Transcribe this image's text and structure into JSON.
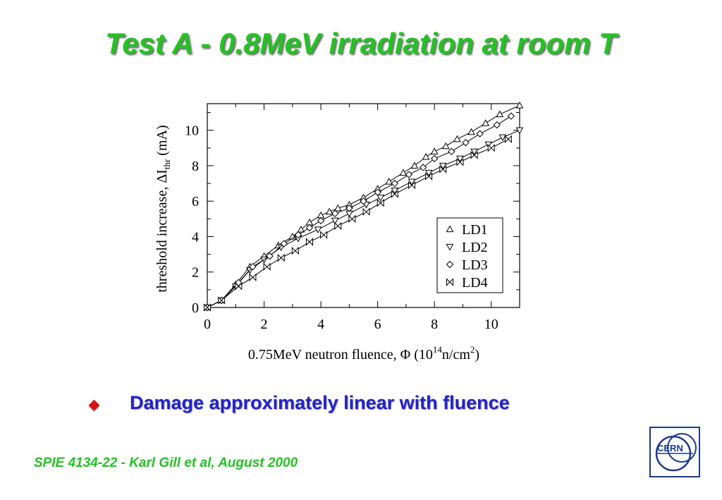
{
  "slide": {
    "title": "Test A - 0.8MeV irradiation at room T",
    "bullet": "Damage approximately linear with fluence",
    "footer": "SPIE 4134-22 - Karl Gill et al, August 2000",
    "logo_text": "CERN"
  },
  "colors": {
    "title": "#22c322",
    "bullet_text": "#2222cc",
    "bullet_icon": "#dd1111",
    "logo": "#1b3a8a"
  },
  "chart_data": {
    "type": "line",
    "xlabel": {
      "main": "0.75MeV neutron fluence, Φ (10",
      "sup1": "14",
      "mid": "n/cm",
      "sup2": "2",
      "end": ")"
    },
    "ylabel": {
      "main": "threshold increase, ΔI",
      "sub": "thr",
      "end": " (mA)"
    },
    "xlim": [
      0,
      11
    ],
    "ylim": [
      0,
      11.5
    ],
    "xticks": [
      0,
      2,
      4,
      6,
      8,
      10
    ],
    "yticks": [
      0,
      2,
      4,
      6,
      8,
      10
    ],
    "grid": false,
    "legend_position": "lower-right",
    "series": [
      {
        "name": "LD1",
        "marker": "triangle-up",
        "x": [
          0,
          0.5,
          1.0,
          1.5,
          2.0,
          2.5,
          3.0,
          3.3,
          3.6,
          4.0,
          4.3,
          4.6,
          5.0,
          5.5,
          6.0,
          6.4,
          6.9,
          7.3,
          7.7,
          8.0,
          8.4,
          8.8,
          9.3,
          9.8,
          10.3,
          11.0
        ],
        "y": [
          0,
          0.4,
          1.3,
          2.3,
          2.9,
          3.5,
          4.0,
          4.4,
          4.8,
          5.2,
          5.4,
          5.6,
          5.8,
          6.2,
          6.7,
          7.1,
          7.6,
          8.0,
          8.5,
          8.8,
          9.1,
          9.5,
          9.9,
          10.4,
          10.9,
          11.4
        ]
      },
      {
        "name": "LD2",
        "marker": "triangle-down",
        "x": [
          0,
          0.5,
          1.0,
          1.5,
          2.0,
          2.6,
          3.2,
          3.9,
          4.5,
          5.0,
          5.6,
          6.1,
          6.6,
          7.2,
          7.8,
          8.3,
          8.9,
          9.4,
          9.9,
          10.4,
          11.0
        ],
        "y": [
          0,
          0.4,
          1.2,
          2.1,
          2.7,
          3.4,
          3.9,
          4.4,
          4.9,
          5.3,
          5.8,
          6.2,
          6.6,
          7.1,
          7.6,
          8.0,
          8.4,
          8.8,
          9.2,
          9.6,
          10.0
        ]
      },
      {
        "name": "LD3",
        "marker": "diamond",
        "x": [
          0,
          0.5,
          1.1,
          1.6,
          2.2,
          2.7,
          3.2,
          3.6,
          4.0,
          4.5,
          5.0,
          5.5,
          6.0,
          6.6,
          7.1,
          7.6,
          8.0,
          8.6,
          9.1,
          9.6,
          10.2,
          10.7
        ],
        "y": [
          0,
          0.4,
          1.4,
          2.3,
          2.9,
          3.6,
          4.1,
          4.5,
          4.9,
          5.3,
          5.6,
          6.0,
          6.5,
          7.0,
          7.5,
          7.9,
          8.4,
          8.8,
          9.3,
          9.8,
          10.3,
          10.8
        ]
      },
      {
        "name": "LD4",
        "marker": "bowtie",
        "x": [
          0,
          0.5,
          1.1,
          1.6,
          2.1,
          2.6,
          3.1,
          3.6,
          4.1,
          4.6,
          5.1,
          5.6,
          6.1,
          6.6,
          7.2,
          7.8,
          8.3,
          8.9,
          9.4,
          10.0,
          10.6
        ],
        "y": [
          0,
          0.4,
          1.2,
          1.7,
          2.3,
          2.8,
          3.2,
          3.7,
          4.1,
          4.6,
          5.0,
          5.4,
          5.9,
          6.4,
          6.9,
          7.4,
          7.8,
          8.2,
          8.6,
          9.0,
          9.5
        ]
      }
    ]
  }
}
